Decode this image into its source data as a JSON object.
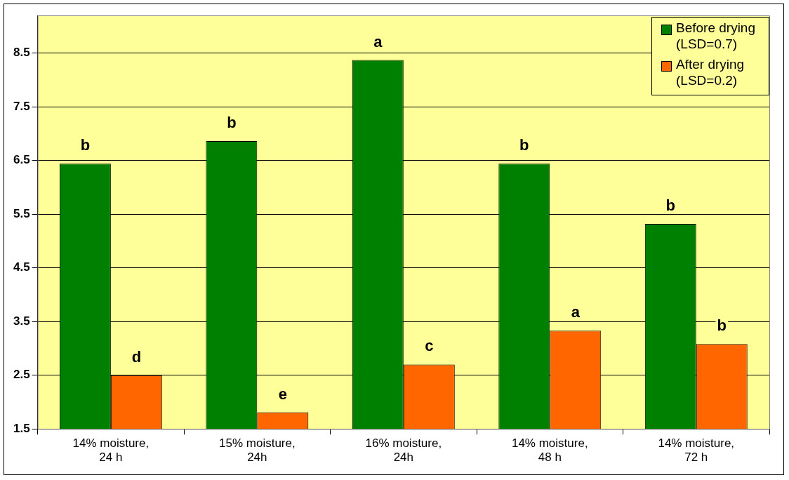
{
  "chart_data": {
    "type": "bar",
    "categories": [
      "14% moisture,\n24 h",
      "15% moisture,\n24h",
      "16% moisture,\n24h",
      "14% moisture,\n48 h",
      "14% moisture,\n72 h"
    ],
    "series": [
      {
        "name": "Before drying\n(LSD=0.7)",
        "color": "#008000",
        "values": [
          6.44,
          6.86,
          8.37,
          6.44,
          5.32
        ]
      },
      {
        "name": "After drying\n(LSD=0.2)",
        "color": "#ff6600",
        "values": [
          2.5,
          1.81,
          2.7,
          3.33,
          3.08
        ]
      }
    ],
    "ylim": [
      1.5,
      9.2
    ],
    "yticks": [
      1.5,
      2.5,
      3.5,
      4.5,
      5.5,
      6.5,
      7.5,
      8.5
    ],
    "grid": "y",
    "legend": "top right",
    "annotations": [
      {
        "text": "b",
        "x": "14% moisture,\n24 h",
        "y": 6.44
      },
      {
        "text": "d",
        "x": "14% moisture,\n24 h",
        "y": 2.5
      },
      {
        "text": "b",
        "x": "15% moisture,\n24h",
        "y": 6.86
      },
      {
        "text": "e",
        "x": "15% moisture,\n24h",
        "y": 1.81
      },
      {
        "text": "a",
        "x": "16% moisture,\n24h",
        "y": 8.37
      },
      {
        "text": "c",
        "x": "16% moisture,\n24h",
        "y": 2.7
      },
      {
        "text": "b",
        "x": "14% moisture,\n48 h",
        "y": 6.44
      },
      {
        "text": "a",
        "x": "14% moisture,\n48 h",
        "y": 3.33
      },
      {
        "text": "b",
        "x": "14% moisture,\n72 h",
        "y": 5.32
      },
      {
        "text": "b",
        "x": "14% moisture,\n72 h",
        "y": 3.08
      }
    ]
  }
}
